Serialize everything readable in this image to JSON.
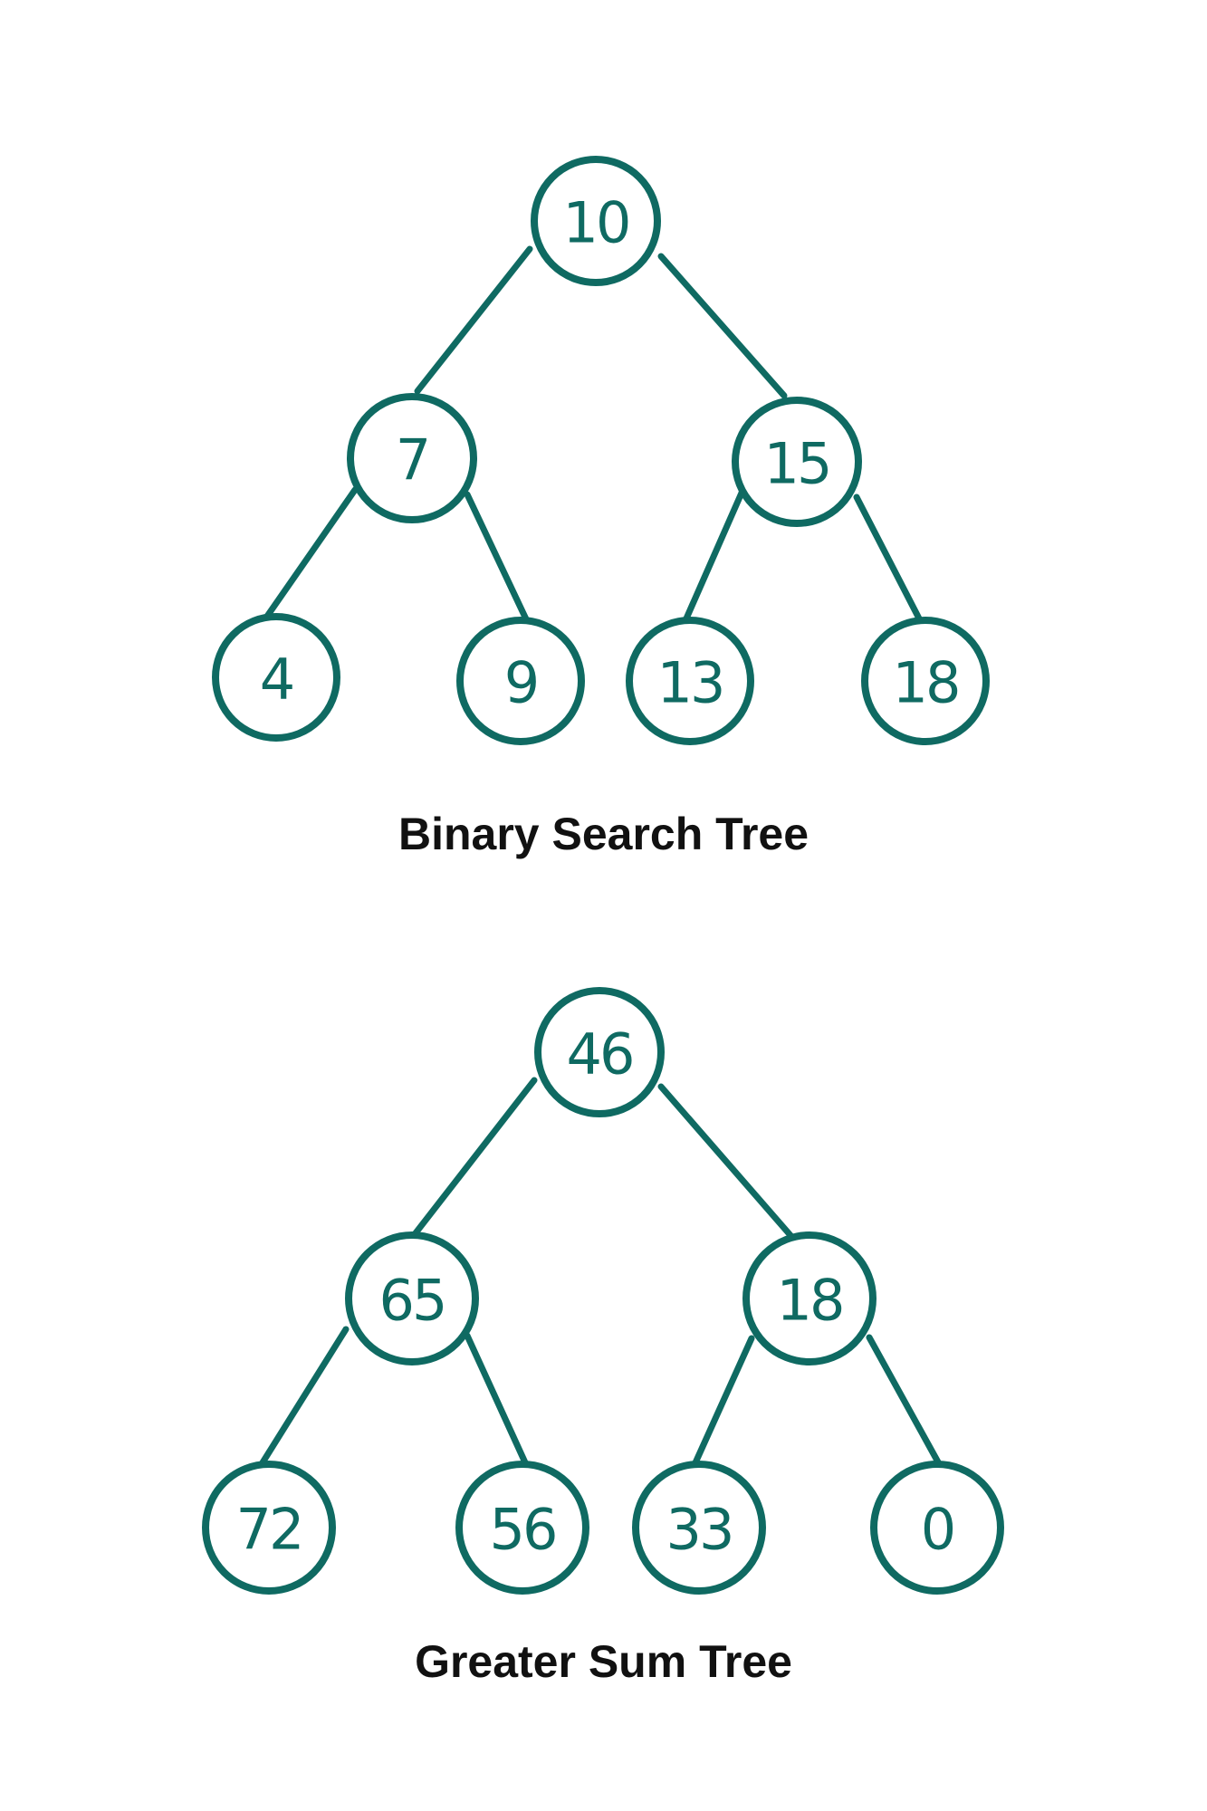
{
  "colors": {
    "node_stroke": "#0f6a62",
    "node_text": "#0f6a62",
    "edge": "#0f6a62",
    "caption": "#111111",
    "background": "#ffffff"
  },
  "trees": [
    {
      "caption": "Binary Search Tree",
      "root": "10",
      "level2": [
        "7",
        "15"
      ],
      "level3": [
        "4",
        "9",
        "13",
        "18"
      ]
    },
    {
      "caption": "Greater Sum Tree",
      "root": "46",
      "level2": [
        "65",
        "18"
      ],
      "level3": [
        "72",
        "56",
        "33",
        "0"
      ]
    }
  ]
}
